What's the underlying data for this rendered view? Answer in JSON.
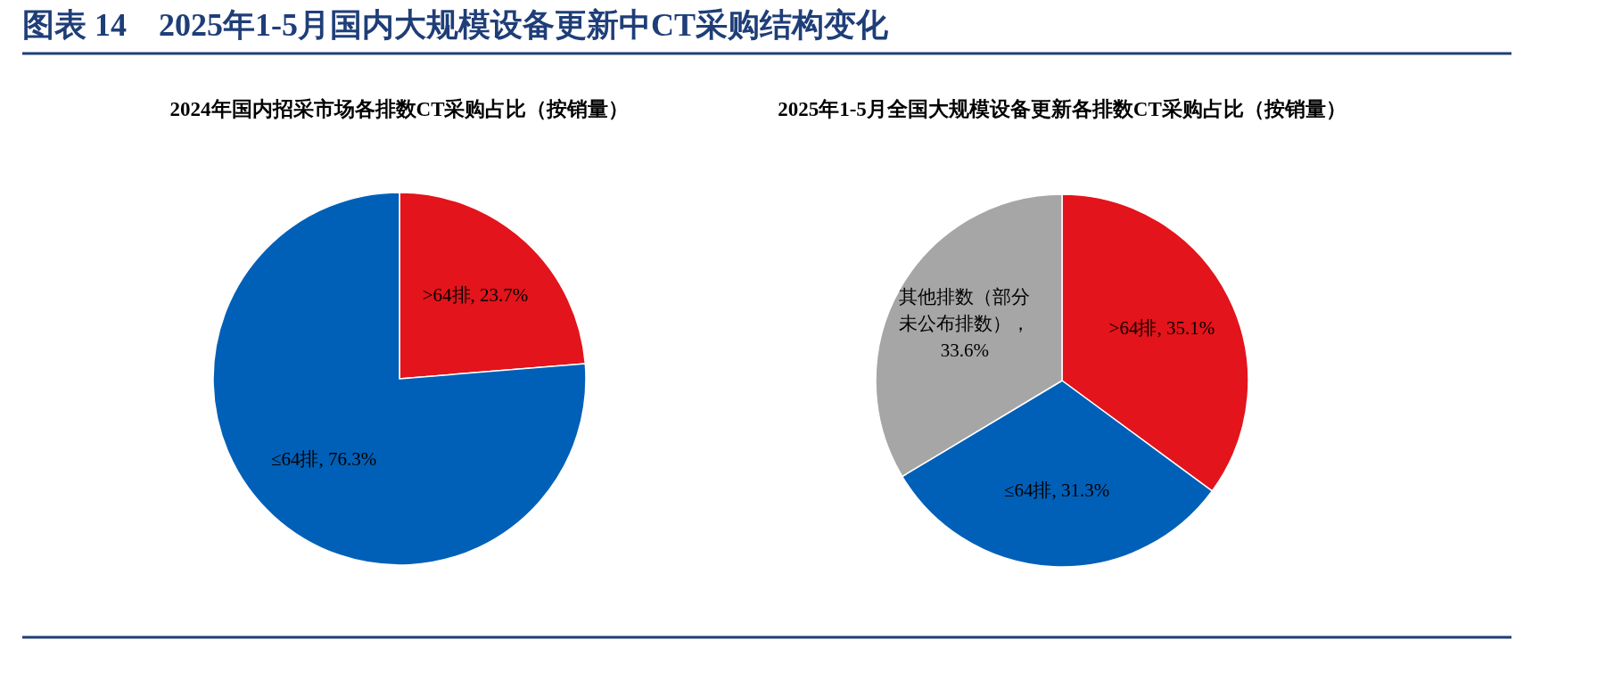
{
  "chart_data": [
    {
      "type": "pie",
      "title": "图表 14　2025年1-5月国内大规模设备更新中CT采购结构变化",
      "subtitle": "2024年国内招采市场各排数CT采购占比（按销量）",
      "categories": [
        ">64排",
        "≤64排"
      ],
      "values": [
        23.7,
        76.3
      ],
      "colors": [
        "#e3141b",
        "#0060b8"
      ],
      "value_labels": [
        ", 23.7%",
        ", 76.3%"
      ]
    },
    {
      "type": "pie",
      "subtitle": "2025年1-5月全国大规模设备更新各排数CT采购占比（按销量）",
      "categories": [
        ">64排",
        "≤64排",
        "其他排数（部分未公布排数）"
      ],
      "values": [
        35.1,
        31.3,
        33.6
      ],
      "colors": [
        "#e3141b",
        "#0060b8",
        "#a6a6a6"
      ],
      "value_labels": [
        ", 35.1%",
        ", 31.3%",
        "，33.6%"
      ]
    }
  ]
}
